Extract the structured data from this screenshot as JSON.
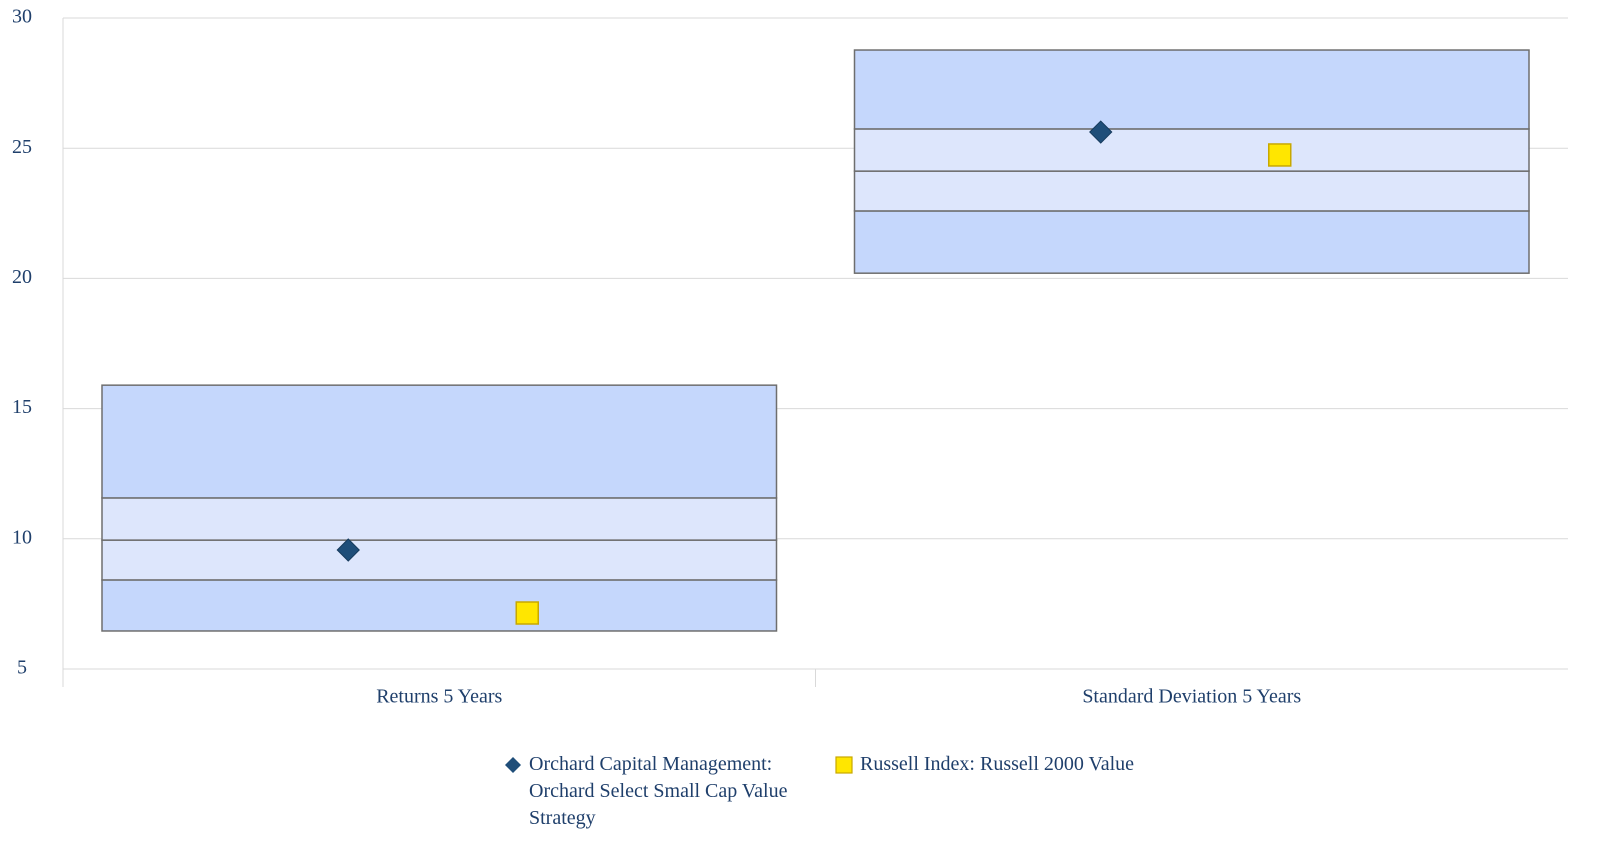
{
  "chart_data": {
    "type": "floating_box",
    "categories": [
      "Returns 5 Years",
      "Standard Deviation 5 Years"
    ],
    "boxes": [
      [
        6.46,
        8.42,
        9.95,
        11.57,
        15.9
      ],
      [
        20.2,
        22.59,
        24.12,
        25.74,
        28.77
      ]
    ],
    "box_colors": [
      "#c5d7fc",
      "#dde6fc"
    ],
    "series": [
      {
        "name": "Orchard Capital Management: Orchard Select Small Cap Value Strategy",
        "color": "#1f4e79",
        "marker": "diamond",
        "values": [
          9.57,
          25.62
        ]
      },
      {
        "name": "Russell Index: Russell 2000 Value",
        "color": "#ffe600",
        "marker": "square",
        "values": [
          7.15,
          24.74
        ]
      }
    ],
    "ylim": [
      5,
      30
    ],
    "yticks": [
      5,
      10,
      15,
      20,
      25,
      30
    ],
    "grid": true
  }
}
